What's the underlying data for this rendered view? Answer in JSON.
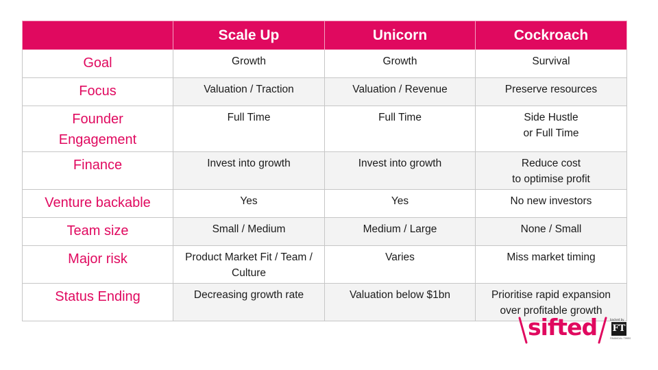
{
  "table": {
    "headers": [
      "",
      "Scale Up",
      "Unicorn",
      "Cockroach"
    ],
    "rows": [
      {
        "label": [
          "Goal"
        ],
        "cells": [
          [
            "Growth"
          ],
          [
            "Growth"
          ],
          [
            "Survival"
          ]
        ]
      },
      {
        "label": [
          "Focus"
        ],
        "cells": [
          [
            "Valuation / Traction"
          ],
          [
            "Valuation / Revenue"
          ],
          [
            "Preserve resources"
          ]
        ]
      },
      {
        "label": [
          "Founder",
          "Engagement"
        ],
        "cells": [
          [
            "Full Time"
          ],
          [
            "Full Time"
          ],
          [
            "Side Hustle",
            "or Full Time"
          ]
        ]
      },
      {
        "label": [
          "Finance"
        ],
        "cells": [
          [
            "Invest into growth"
          ],
          [
            "Invest into growth"
          ],
          [
            "Reduce cost",
            "to optimise profit"
          ]
        ]
      },
      {
        "label": [
          "Venture backable"
        ],
        "cells": [
          [
            "Yes"
          ],
          [
            "Yes"
          ],
          [
            "No new investors"
          ]
        ]
      },
      {
        "label": [
          "Team size"
        ],
        "cells": [
          [
            "Small / Medium"
          ],
          [
            "Medium / Large"
          ],
          [
            "None / Small"
          ]
        ]
      },
      {
        "label": [
          "Major risk"
        ],
        "cells": [
          [
            "Product Market Fit / Team /",
            "Culture"
          ],
          [
            "Varies"
          ],
          [
            "Miss market timing"
          ]
        ]
      },
      {
        "label": [
          "Status Ending"
        ],
        "cells": [
          [
            "Decreasing growth rate"
          ],
          [
            "Valuation below $1bn"
          ],
          [
            "Prioritise rapid expansion",
            "over profitable growth"
          ]
        ]
      }
    ]
  },
  "logo": {
    "text": "sifted",
    "ft_small": "backed by",
    "ft_mark": "FT",
    "ft_caption": "FINANCIAL TIMES",
    "brand_color": "#e0095f"
  }
}
